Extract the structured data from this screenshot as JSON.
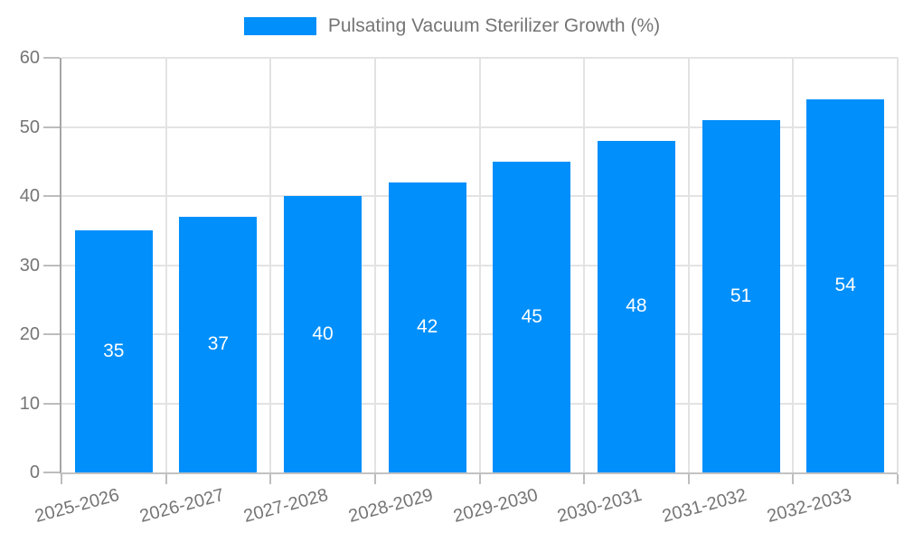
{
  "legend": {
    "items": [
      {
        "label": "Pulsating Vacuum Sterilizer Growth (%)",
        "color": "#008FFB"
      }
    ]
  },
  "chart_data": {
    "type": "bar",
    "title": "Pulsating Vacuum Sterilizer Growth (%)",
    "categories": [
      "2025-2026",
      "2026-2027",
      "2027-2028",
      "2028-2029",
      "2029-2030",
      "2030-2031",
      "2031-2032",
      "2032-2033"
    ],
    "series": [
      {
        "name": "Pulsating Vacuum Sterilizer Growth (%)",
        "color": "#008FFB",
        "values": [
          35,
          37,
          40,
          42,
          45,
          48,
          51,
          54
        ]
      }
    ],
    "xlabel": "",
    "ylabel": "",
    "ylim": [
      0,
      60
    ],
    "y_ticks": [
      0,
      10,
      20,
      30,
      40,
      50,
      60
    ],
    "grid": true,
    "legend_position": "top",
    "x_label_rotation_deg": -15,
    "value_labels": "inside-center",
    "value_label_color": "#FFFFFF"
  },
  "colors": {
    "bar": "#008FFB",
    "y_axis_line": "#a6a6a6",
    "x_axis_line": "#c2c2c2",
    "grid_line": "#e3e3e3",
    "tick": "#bdbdbd",
    "axis_label": "#757575",
    "legend_text": "#757575",
    "background": "#ffffff"
  }
}
